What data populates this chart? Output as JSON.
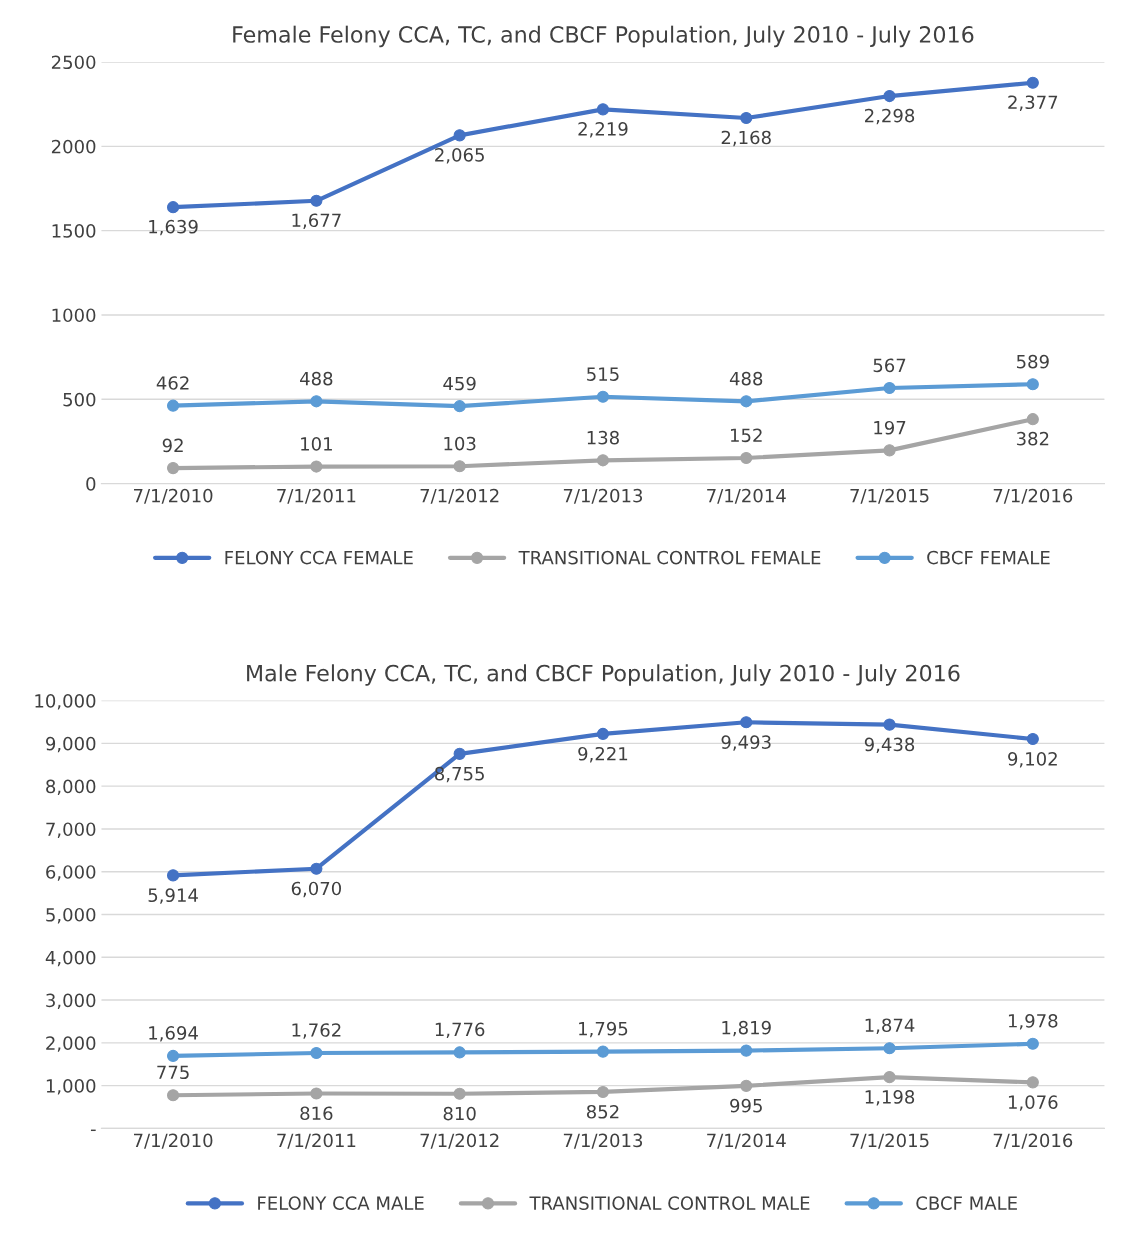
{
  "chart_data": [
    {
      "type": "line",
      "title": "Female Felony CCA, TC, and CBCF Population, July 2010 - July 2016",
      "categories": [
        "7/1/2010",
        "7/1/2011",
        "7/1/2012",
        "7/1/2013",
        "7/1/2014",
        "7/1/2015",
        "7/1/2016"
      ],
      "series": [
        {
          "name": "FELONY CCA FEMALE",
          "color": "#4472c4",
          "values": [
            1639,
            1677,
            2065,
            2219,
            2168,
            2298,
            2377
          ],
          "value_labels": [
            "1,639",
            "1,677",
            "2,065",
            "2,219",
            "2,168",
            "2,298",
            "2,377"
          ]
        },
        {
          "name": "TRANSITIONAL CONTROL FEMALE",
          "color": "#a5a5a5",
          "values": [
            92,
            101,
            103,
            138,
            152,
            197,
            382
          ],
          "value_labels": [
            "92",
            "101",
            "103",
            "138",
            "152",
            "197",
            "382"
          ]
        },
        {
          "name": "CBCF FEMALE",
          "color": "#5b9bd5",
          "values": [
            462,
            488,
            459,
            515,
            488,
            567,
            589
          ],
          "value_labels": [
            "462",
            "488",
            "459",
            "515",
            "488",
            "567",
            "589"
          ]
        }
      ],
      "ylim": [
        0,
        2500
      ],
      "yticks": [
        0,
        500,
        1000,
        1500,
        2000,
        2500
      ],
      "grid": "y",
      "legend": "bottom",
      "marker": "circle",
      "line_style": "solid"
    },
    {
      "type": "line",
      "title": "Male Felony CCA, TC, and CBCF Population, July 2010 - July 2016",
      "categories": [
        "7/1/2010",
        "7/1/2011",
        "7/1/2012",
        "7/1/2013",
        "7/1/2014",
        "7/1/2015",
        "7/1/2016"
      ],
      "series": [
        {
          "name": "FELONY CCA MALE",
          "color": "#4472c4",
          "values": [
            5914,
            6070,
            8755,
            9221,
            9493,
            9438,
            9102
          ],
          "value_labels": [
            "5,914",
            "6,070",
            "8,755",
            "9,221",
            "9,493",
            "9,438",
            "9,102"
          ]
        },
        {
          "name": "TRANSITIONAL CONTROL MALE",
          "color": "#a5a5a5",
          "values": [
            775,
            816,
            810,
            852,
            995,
            1198,
            1076
          ],
          "value_labels": [
            "775",
            "816",
            "810",
            "852",
            "995",
            "1,198",
            "1,076"
          ]
        },
        {
          "name": "CBCF MALE",
          "color": "#5b9bd5",
          "values": [
            1694,
            1762,
            1776,
            1795,
            1819,
            1874,
            1978
          ],
          "value_labels": [
            "1,694",
            "1,762",
            "1,776",
            "1,795",
            "1,819",
            "1,874",
            "1,978"
          ]
        }
      ],
      "ylim": [
        0,
        10000
      ],
      "yticks": [
        {
          "value": 0,
          "label": "-"
        },
        {
          "value": 1000,
          "label": "1,000"
        },
        {
          "value": 2000,
          "label": "2,000"
        },
        {
          "value": 3000,
          "label": "3,000"
        },
        {
          "value": 4000,
          "label": "4,000"
        },
        {
          "value": 5000,
          "label": "5,000"
        },
        {
          "value": 6000,
          "label": "6,000"
        },
        {
          "value": 7000,
          "label": "7,000"
        },
        {
          "value": 8000,
          "label": "8,000"
        },
        {
          "value": 9000,
          "label": "9,000"
        },
        {
          "value": 10000,
          "label": "10,000"
        }
      ],
      "grid": "y",
      "legend": "bottom",
      "marker": "circle",
      "line_style": "solid"
    }
  ]
}
